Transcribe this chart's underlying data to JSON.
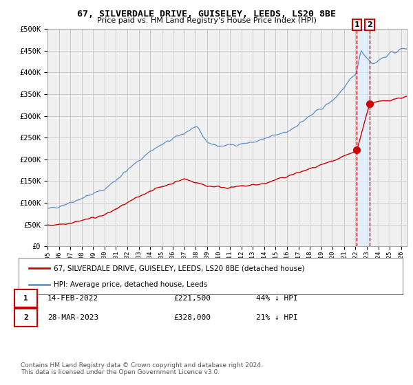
{
  "title": "67, SILVERDALE DRIVE, GUISELEY, LEEDS, LS20 8BE",
  "subtitle": "Price paid vs. HM Land Registry's House Price Index (HPI)",
  "hpi_color": "#6699cc",
  "price_color": "#cc0000",
  "background_color": "#ffffff",
  "grid_color": "#cccccc",
  "ylim": [
    0,
    500000
  ],
  "yticks": [
    0,
    50000,
    100000,
    150000,
    200000,
    250000,
    300000,
    350000,
    400000,
    450000,
    500000
  ],
  "ytick_labels": [
    "£0",
    "£50K",
    "£100K",
    "£150K",
    "£200K",
    "£250K",
    "£300K",
    "£350K",
    "£400K",
    "£450K",
    "£500K"
  ],
  "xlim_start": 1995.0,
  "xlim_end": 2026.5,
  "xticks": [
    1995,
    1996,
    1997,
    1998,
    1999,
    2000,
    2001,
    2002,
    2003,
    2004,
    2005,
    2006,
    2007,
    2008,
    2009,
    2010,
    2011,
    2012,
    2013,
    2014,
    2015,
    2016,
    2017,
    2018,
    2019,
    2020,
    2021,
    2022,
    2023,
    2024,
    2025,
    2026
  ],
  "legend_label_price": "67, SILVERDALE DRIVE, GUISELEY, LEEDS, LS20 8BE (detached house)",
  "legend_label_hpi": "HPI: Average price, detached house, Leeds",
  "transaction1_label": "1",
  "transaction1_date": "14-FEB-2022",
  "transaction1_price": "£221,500",
  "transaction1_hpi": "44% ↓ HPI",
  "transaction1_year": 2022.12,
  "transaction1_value": 221500,
  "transaction2_label": "2",
  "transaction2_date": "28-MAR-2023",
  "transaction2_price": "£328,000",
  "transaction2_hpi": "21% ↓ HPI",
  "transaction2_year": 2023.24,
  "transaction2_value": 328000,
  "footnote": "Contains HM Land Registry data © Crown copyright and database right 2024.\nThis data is licensed under the Open Government Licence v3.0.",
  "dashed_line_color": "#cc0000",
  "marker_color": "#cc0000",
  "box_color": "#cc0000",
  "shade_color": "#ddeeff"
}
